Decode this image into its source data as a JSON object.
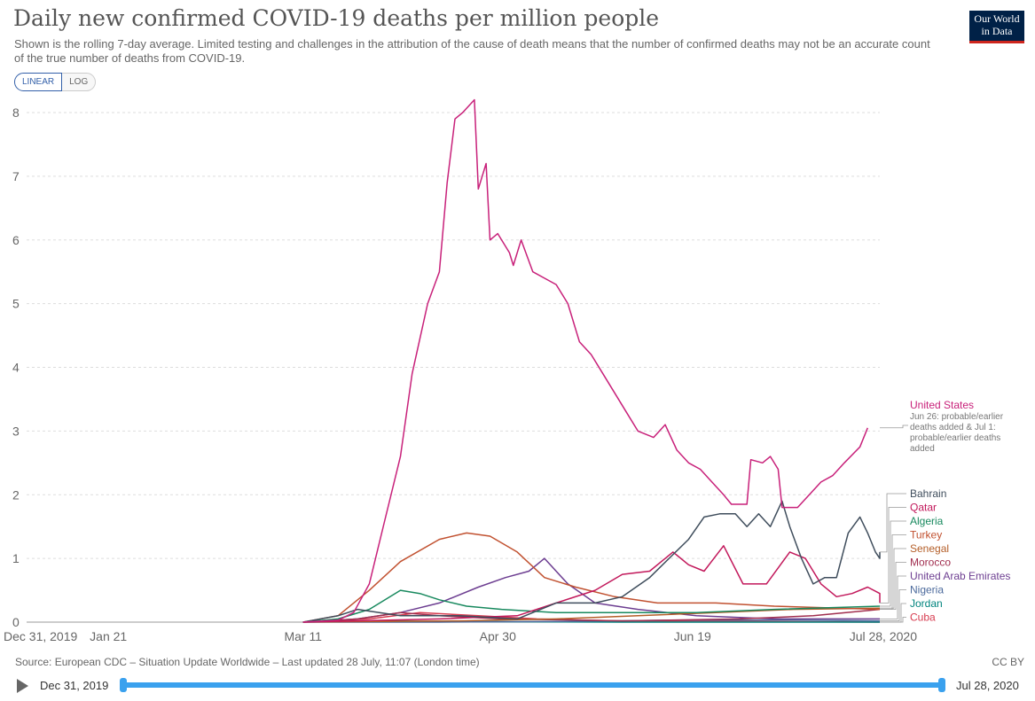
{
  "title": "Daily new confirmed COVID-19 deaths per million people",
  "subtitle": "Shown is the rolling 7-day average. Limited testing and challenges in the attribution of the cause of death means that the number of confirmed deaths may not be an accurate count of the true number of deaths from COVID-19.",
  "logo": {
    "line1": "Our World",
    "line2": "in Data"
  },
  "scale_toggle": {
    "linear": "LINEAR",
    "log": "LOG",
    "selected": "LINEAR"
  },
  "footer": {
    "source": "Source: European CDC – Situation Update Worldwide – Last updated 28 July, 11:07 (London time)",
    "license": "CC BY"
  },
  "timeline": {
    "start": "Dec 31, 2019",
    "end": "Jul 28, 2020"
  },
  "chart_data": {
    "type": "line",
    "ylim": [
      0,
      8
    ],
    "yticks": [
      0,
      1,
      2,
      3,
      4,
      5,
      6,
      7,
      8
    ],
    "xlim": [
      "2019-12-31",
      "2020-07-28"
    ],
    "xticks": [
      {
        "date": "2019-12-31",
        "label": "Dec 31, 2019"
      },
      {
        "date": "2020-01-21",
        "label": "Jan 21"
      },
      {
        "date": "2020-03-11",
        "label": "Mar 11"
      },
      {
        "date": "2020-04-30",
        "label": "Apr 30"
      },
      {
        "date": "2020-06-19",
        "label": "Jun 19"
      },
      {
        "date": "2020-07-28",
        "label": "Jul 28, 2020"
      }
    ],
    "grid": true,
    "series": [
      {
        "name": "United States",
        "color": "#c8217a",
        "annotation": "Jun 26: probable/earlier deaths added & Jul 1: probable/earlier deaths added",
        "points": [
          [
            "2020-03-11",
            0
          ],
          [
            "2020-03-20",
            0.03
          ],
          [
            "2020-03-24",
            0.15
          ],
          [
            "2020-03-28",
            0.6
          ],
          [
            "2020-04-01",
            1.6
          ],
          [
            "2020-04-05",
            2.6
          ],
          [
            "2020-04-08",
            3.9
          ],
          [
            "2020-04-12",
            5.0
          ],
          [
            "2020-04-15",
            5.5
          ],
          [
            "2020-04-17",
            6.9
          ],
          [
            "2020-04-19",
            7.9
          ],
          [
            "2020-04-21",
            8.0
          ],
          [
            "2020-04-24",
            8.2
          ],
          [
            "2020-04-25",
            6.8
          ],
          [
            "2020-04-27",
            7.2
          ],
          [
            "2020-04-28",
            6.0
          ],
          [
            "2020-04-30",
            6.1
          ],
          [
            "2020-05-03",
            5.8
          ],
          [
            "2020-05-04",
            5.6
          ],
          [
            "2020-05-06",
            6.0
          ],
          [
            "2020-05-09",
            5.5
          ],
          [
            "2020-05-12",
            5.4
          ],
          [
            "2020-05-15",
            5.3
          ],
          [
            "2020-05-18",
            5.0
          ],
          [
            "2020-05-21",
            4.4
          ],
          [
            "2020-05-24",
            4.2
          ],
          [
            "2020-05-27",
            3.9
          ],
          [
            "2020-05-30",
            3.6
          ],
          [
            "2020-06-02",
            3.3
          ],
          [
            "2020-06-05",
            3.0
          ],
          [
            "2020-06-09",
            2.9
          ],
          [
            "2020-06-12",
            3.1
          ],
          [
            "2020-06-15",
            2.7
          ],
          [
            "2020-06-18",
            2.5
          ],
          [
            "2020-06-21",
            2.4
          ],
          [
            "2020-06-24",
            2.2
          ],
          [
            "2020-06-27",
            2.0
          ],
          [
            "2020-06-29",
            1.85
          ],
          [
            "2020-07-03",
            1.85
          ],
          [
            "2020-07-04",
            2.55
          ],
          [
            "2020-07-07",
            2.5
          ],
          [
            "2020-07-09",
            2.6
          ],
          [
            "2020-07-11",
            2.4
          ],
          [
            "2020-07-12",
            1.8
          ],
          [
            "2020-07-16",
            1.8
          ],
          [
            "2020-07-19",
            2.0
          ],
          [
            "2020-07-22",
            2.2
          ],
          [
            "2020-07-25",
            2.3
          ],
          [
            "2020-07-28",
            2.5
          ],
          [
            "2020-08-01",
            2.75
          ],
          [
            "2020-08-03",
            3.05
          ]
        ]
      },
      {
        "name": "Bahrain",
        "color": "#3f4d5c",
        "points": [
          [
            "2020-03-11",
            0
          ],
          [
            "2020-03-20",
            0.1
          ],
          [
            "2020-03-25",
            0.2
          ],
          [
            "2020-04-05",
            0.1
          ],
          [
            "2020-04-20",
            0.1
          ],
          [
            "2020-05-05",
            0.05
          ],
          [
            "2020-05-15",
            0.3
          ],
          [
            "2020-05-25",
            0.3
          ],
          [
            "2020-06-01",
            0.4
          ],
          [
            "2020-06-08",
            0.7
          ],
          [
            "2020-06-13",
            1.0
          ],
          [
            "2020-06-18",
            1.3
          ],
          [
            "2020-06-22",
            1.65
          ],
          [
            "2020-06-26",
            1.7
          ],
          [
            "2020-06-30",
            1.7
          ],
          [
            "2020-07-03",
            1.5
          ],
          [
            "2020-07-06",
            1.7
          ],
          [
            "2020-07-09",
            1.5
          ],
          [
            "2020-07-12",
            1.9
          ],
          [
            "2020-07-14",
            1.5
          ],
          [
            "2020-07-17",
            1.0
          ],
          [
            "2020-07-20",
            0.6
          ],
          [
            "2020-07-23",
            0.7
          ],
          [
            "2020-07-26",
            0.7
          ],
          [
            "2020-07-29",
            1.4
          ],
          [
            "2020-08-01",
            1.65
          ],
          [
            "2020-08-03",
            1.4
          ],
          [
            "2020-08-05",
            1.1
          ],
          [
            "2020-08-07",
            1.0
          ],
          [
            "2020-08-09",
            1.1
          ]
        ]
      },
      {
        "name": "Qatar",
        "color": "#c2185b",
        "points": [
          [
            "2020-03-11",
            0
          ],
          [
            "2020-04-15",
            0.05
          ],
          [
            "2020-05-05",
            0.1
          ],
          [
            "2020-05-15",
            0.3
          ],
          [
            "2020-05-25",
            0.5
          ],
          [
            "2020-06-01",
            0.75
          ],
          [
            "2020-06-08",
            0.8
          ],
          [
            "2020-06-14",
            1.1
          ],
          [
            "2020-06-18",
            0.9
          ],
          [
            "2020-06-22",
            0.8
          ],
          [
            "2020-06-27",
            1.2
          ],
          [
            "2020-07-02",
            0.6
          ],
          [
            "2020-07-08",
            0.6
          ],
          [
            "2020-07-14",
            1.1
          ],
          [
            "2020-07-18",
            1.0
          ],
          [
            "2020-07-22",
            0.6
          ],
          [
            "2020-07-26",
            0.4
          ],
          [
            "2020-07-30",
            0.45
          ],
          [
            "2020-08-03",
            0.55
          ],
          [
            "2020-08-07",
            0.45
          ],
          [
            "2020-08-09",
            0.3
          ]
        ]
      },
      {
        "name": "Algeria",
        "color": "#18895e",
        "points": [
          [
            "2020-03-11",
            0
          ],
          [
            "2020-03-20",
            0.05
          ],
          [
            "2020-03-28",
            0.2
          ],
          [
            "2020-04-05",
            0.5
          ],
          [
            "2020-04-10",
            0.45
          ],
          [
            "2020-04-15",
            0.35
          ],
          [
            "2020-04-22",
            0.25
          ],
          [
            "2020-05-01",
            0.2
          ],
          [
            "2020-05-15",
            0.15
          ],
          [
            "2020-06-01",
            0.15
          ],
          [
            "2020-06-20",
            0.15
          ],
          [
            "2020-07-10",
            0.2
          ],
          [
            "2020-08-09",
            0.25
          ]
        ]
      },
      {
        "name": "Turkey",
        "color": "#c15130",
        "points": [
          [
            "2020-03-11",
            0
          ],
          [
            "2020-03-20",
            0.1
          ],
          [
            "2020-03-28",
            0.5
          ],
          [
            "2020-04-05",
            0.95
          ],
          [
            "2020-04-15",
            1.3
          ],
          [
            "2020-04-22",
            1.4
          ],
          [
            "2020-04-28",
            1.35
          ],
          [
            "2020-05-05",
            1.1
          ],
          [
            "2020-05-12",
            0.7
          ],
          [
            "2020-05-20",
            0.55
          ],
          [
            "2020-05-30",
            0.4
          ],
          [
            "2020-06-10",
            0.3
          ],
          [
            "2020-06-25",
            0.3
          ],
          [
            "2020-07-10",
            0.25
          ],
          [
            "2020-08-09",
            0.2
          ]
        ]
      },
      {
        "name": "Senegal",
        "color": "#b45e28",
        "points": [
          [
            "2020-03-11",
            0
          ],
          [
            "2020-04-20",
            0.02
          ],
          [
            "2020-05-15",
            0.05
          ],
          [
            "2020-06-05",
            0.1
          ],
          [
            "2020-06-25",
            0.15
          ],
          [
            "2020-07-15",
            0.2
          ],
          [
            "2020-08-09",
            0.22
          ]
        ]
      },
      {
        "name": "Morocco",
        "color": "#a12e4f",
        "points": [
          [
            "2020-03-11",
            0
          ],
          [
            "2020-03-25",
            0.05
          ],
          [
            "2020-04-05",
            0.15
          ],
          [
            "2020-04-15",
            0.1
          ],
          [
            "2020-05-01",
            0.05
          ],
          [
            "2020-06-01",
            0.02
          ],
          [
            "2020-07-01",
            0.05
          ],
          [
            "2020-07-20",
            0.1
          ],
          [
            "2020-08-09",
            0.2
          ]
        ]
      },
      {
        "name": "United Arab Emirates",
        "color": "#6d3e91",
        "points": [
          [
            "2020-03-11",
            0
          ],
          [
            "2020-03-25",
            0.05
          ],
          [
            "2020-04-05",
            0.15
          ],
          [
            "2020-04-15",
            0.3
          ],
          [
            "2020-04-25",
            0.55
          ],
          [
            "2020-05-02",
            0.7
          ],
          [
            "2020-05-08",
            0.8
          ],
          [
            "2020-05-12",
            1.0
          ],
          [
            "2020-05-18",
            0.6
          ],
          [
            "2020-05-25",
            0.3
          ],
          [
            "2020-06-05",
            0.2
          ],
          [
            "2020-06-20",
            0.1
          ],
          [
            "2020-07-10",
            0.05
          ],
          [
            "2020-08-09",
            0.05
          ]
        ]
      },
      {
        "name": "Nigeria",
        "color": "#4c6a9c",
        "points": [
          [
            "2020-03-11",
            0
          ],
          [
            "2020-04-15",
            0.0
          ],
          [
            "2020-05-15",
            0.01
          ],
          [
            "2020-06-15",
            0.03
          ],
          [
            "2020-07-15",
            0.03
          ],
          [
            "2020-08-09",
            0.02
          ]
        ]
      },
      {
        "name": "Jordan",
        "color": "#00847e",
        "points": [
          [
            "2020-03-11",
            0
          ],
          [
            "2020-04-01",
            0.02
          ],
          [
            "2020-04-15",
            0.01
          ],
          [
            "2020-06-01",
            0.0
          ],
          [
            "2020-08-09",
            0.0
          ]
        ]
      },
      {
        "name": "Cuba",
        "color": "#d73c50",
        "points": [
          [
            "2020-03-11",
            0
          ],
          [
            "2020-03-28",
            0.05
          ],
          [
            "2020-04-10",
            0.15
          ],
          [
            "2020-04-25",
            0.1
          ],
          [
            "2020-05-10",
            0.05
          ],
          [
            "2020-06-01",
            0.02
          ],
          [
            "2020-07-01",
            0.01
          ],
          [
            "2020-08-09",
            0.0
          ]
        ]
      }
    ]
  }
}
